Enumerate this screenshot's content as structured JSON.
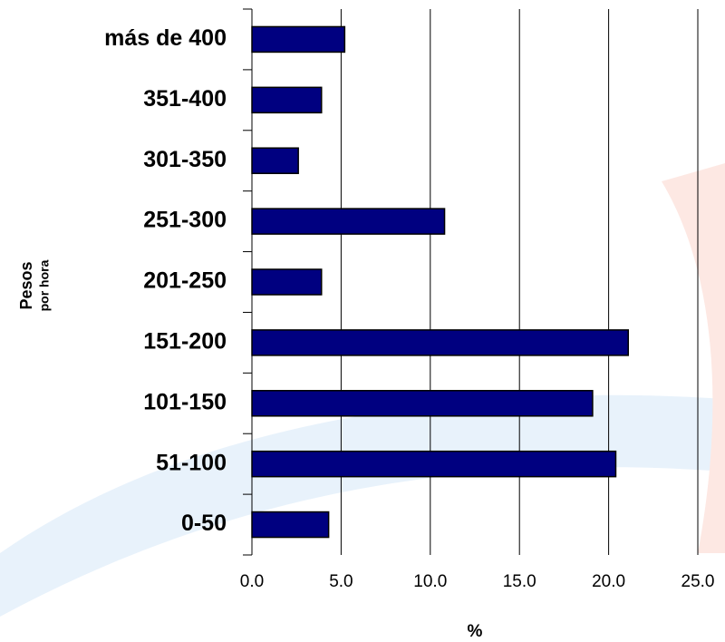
{
  "chart_data": {
    "type": "bar",
    "orientation": "horizontal",
    "y_label": "Pesos",
    "y_label_sub": "por hora",
    "x_label": "%",
    "categories": [
      "0-50",
      "51-100",
      "101-150",
      "151-200",
      "201-250",
      "251-300",
      "301-350",
      "351-400",
      "más de 400"
    ],
    "values": [
      4.3,
      20.4,
      19.1,
      21.1,
      3.9,
      10.8,
      2.6,
      3.9,
      5.2
    ],
    "color": "#000080",
    "xlim": [
      0,
      25
    ],
    "xticks": [
      {
        "value": 0,
        "label": "0.0"
      },
      {
        "value": 5,
        "label": "5.0"
      },
      {
        "value": 10,
        "label": "10.0"
      },
      {
        "value": 15,
        "label": "15.0"
      },
      {
        "value": 20,
        "label": "20.0"
      },
      {
        "value": 25,
        "label": "25.0"
      }
    ],
    "grid": true
  }
}
